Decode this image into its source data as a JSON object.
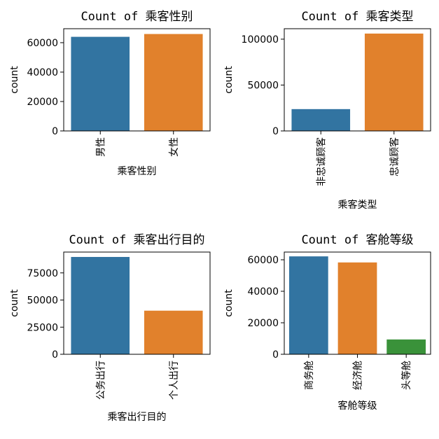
{
  "chart_data": [
    {
      "type": "bar",
      "title": "Count of 乘客性别",
      "xlabel": "乘客性别",
      "ylabel": "count",
      "categories": [
        "男性",
        "女性"
      ],
      "values": [
        63981,
        65899
      ],
      "colors": [
        "#3274a1",
        "#e1812c"
      ],
      "ylim": [
        0,
        69500
      ],
      "yticks": [
        0,
        20000,
        40000,
        60000
      ]
    },
    {
      "type": "bar",
      "title": "Count of 乘客类型",
      "xlabel": "乘客类型",
      "ylabel": "count",
      "categories": [
        "非忠诚顾客",
        "忠诚顾客"
      ],
      "values": [
        23780,
        106100
      ],
      "colors": [
        "#3274a1",
        "#e1812c"
      ],
      "ylim": [
        0,
        111400
      ],
      "yticks": [
        0,
        50000,
        100000
      ]
    },
    {
      "type": "bar",
      "title": "Count of 乘客出行目的",
      "xlabel": "乘客出行目的",
      "ylabel": "count",
      "categories": [
        "公务出行",
        "个人出行"
      ],
      "values": [
        89693,
        40187
      ],
      "colors": [
        "#3274a1",
        "#e1812c"
      ],
      "ylim": [
        0,
        94200
      ],
      "yticks": [
        0,
        25000,
        50000,
        75000
      ]
    },
    {
      "type": "bar",
      "title": "Count of 客舱等级",
      "xlabel": "客舱等级",
      "ylabel": "count",
      "categories": [
        "商务舱",
        "经济舱",
        "头等舱"
      ],
      "values": [
        62160,
        58309,
        9411
      ],
      "colors": [
        "#3274a1",
        "#e1812c",
        "#3a923a"
      ],
      "ylim": [
        0,
        64900
      ],
      "yticks": [
        0,
        20000,
        40000,
        60000
      ]
    }
  ]
}
